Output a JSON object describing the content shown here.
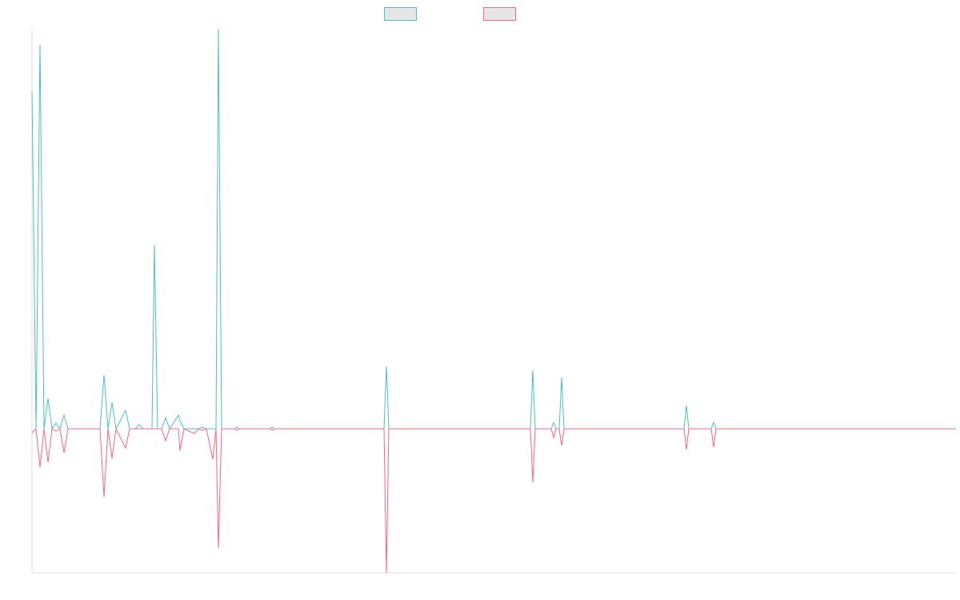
{
  "chart_data": {
    "type": "line",
    "x": [
      0,
      5,
      10,
      15,
      20,
      25,
      30,
      35,
      40,
      45,
      85,
      90,
      95,
      100,
      105,
      117,
      122,
      129,
      134,
      139,
      150,
      153,
      157,
      162,
      167,
      172,
      183,
      185,
      190,
      203,
      208,
      213,
      218,
      226,
      230,
      233,
      237,
      253,
      256,
      259,
      297,
      300,
      303,
      440,
      443,
      446,
      623,
      626,
      629,
      649,
      652,
      655,
      659,
      662,
      665,
      815,
      818,
      821,
      849,
      852,
      855,
      1155
    ],
    "series": [
      {
        "color": "#4bc0c0",
        "values": [
          422,
          0,
          480,
          0,
          38,
          0,
          7,
          0,
          17,
          0,
          0,
          67,
          0,
          33,
          0,
          23,
          0,
          0,
          5,
          0,
          0,
          230,
          0,
          0,
          14,
          0,
          17,
          10,
          0,
          0,
          0,
          2,
          0,
          0,
          0,
          500,
          0,
          0,
          2,
          0,
          0,
          2,
          0,
          0,
          78,
          0,
          0,
          73,
          0,
          0,
          8,
          0,
          0,
          64,
          0,
          0,
          29,
          0,
          0,
          8,
          0,
          0
        ]
      },
      {
        "color": "#ff6384",
        "values": [
          -5,
          0,
          -48,
          0,
          -42,
          0,
          -3,
          0,
          -30,
          0,
          0,
          -85,
          0,
          -37,
          0,
          -24,
          0,
          0,
          0,
          0,
          0,
          0,
          0,
          0,
          -15,
          0,
          0,
          -27,
          0,
          -6,
          0,
          -2,
          0,
          -38,
          0,
          -149,
          0,
          0,
          -2,
          0,
          0,
          -2,
          0,
          0,
          -180,
          0,
          0,
          -67,
          0,
          0,
          -11,
          0,
          0,
          -21,
          0,
          0,
          -26,
          0,
          0,
          -23,
          0,
          0
        ]
      }
    ],
    "xlim": [
      0,
      1155
    ],
    "ylim": [
      -180,
      500
    ],
    "legend": "top"
  }
}
